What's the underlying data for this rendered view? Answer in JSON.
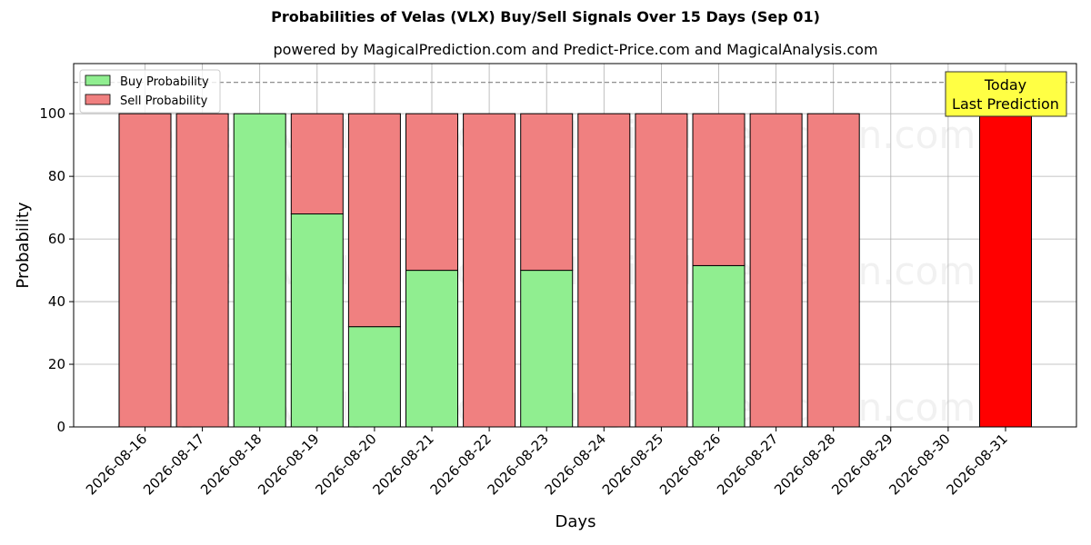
{
  "title": "Probabilities of Velas (VLX) Buy/Sell Signals Over 15 Days (Sep 01)",
  "subtitle": "powered by MagicalPrediction.com and Predict-Price.com and MagicalAnalysis.com",
  "watermarks": [
    "MagicalAnalysis.com",
    "MagicalPrediction.com"
  ],
  "today_annotation": [
    "Today",
    "Last Prediction"
  ],
  "colors": {
    "buy": "#90ee90",
    "sell": "#f08080",
    "today": "#ff0000",
    "annotation_bg": "#ffff44",
    "reference_line": "#808080"
  },
  "chart_data": {
    "type": "bar",
    "stacked": true,
    "xlabel": "Days",
    "ylabel": "Probability",
    "ylim": [
      0,
      116
    ],
    "yticks": [
      0,
      20,
      40,
      60,
      80,
      100
    ],
    "reference_line_y": 110,
    "grid": true,
    "legend_position": "top-left",
    "categories": [
      "2026-08-16",
      "2026-08-17",
      "2026-08-18",
      "2026-08-19",
      "2026-08-20",
      "2026-08-21",
      "2026-08-22",
      "2026-08-23",
      "2026-08-24",
      "2026-08-25",
      "2026-08-26",
      "2026-08-27",
      "2026-08-28",
      "2026-08-29",
      "2026-08-30",
      "2026-08-31"
    ],
    "series": [
      {
        "name": "Buy Probability",
        "values": [
          0,
          0,
          100,
          68,
          32,
          50,
          0,
          50,
          0,
          0,
          51.5,
          0,
          0,
          null,
          null,
          0
        ]
      },
      {
        "name": "Sell Probability",
        "values": [
          100,
          100,
          0,
          32,
          68,
          50,
          100,
          50,
          100,
          100,
          48.5,
          100,
          100,
          null,
          null,
          100
        ]
      }
    ],
    "highlight_category": "2026-08-31"
  }
}
